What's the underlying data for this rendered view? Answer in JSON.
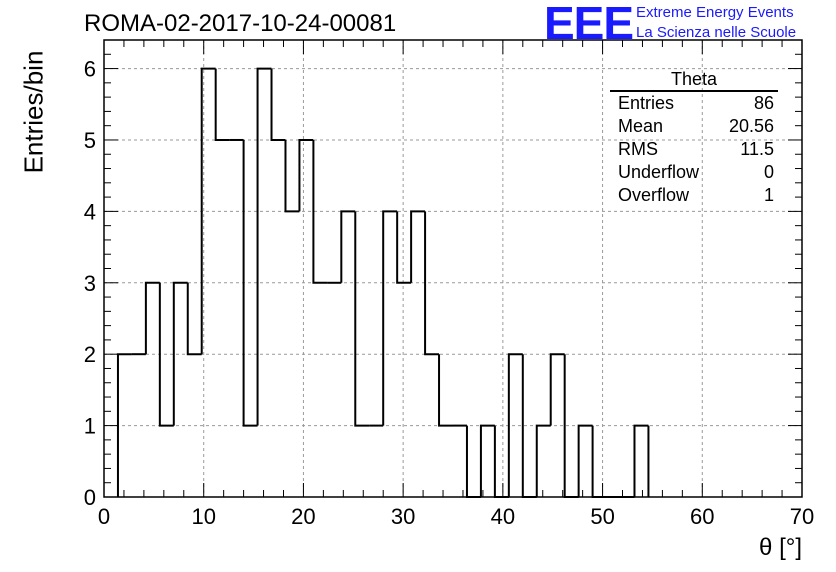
{
  "header": {
    "run_title": "ROMA-02-2017-10-24-00081",
    "logo_mark": "EEE",
    "logo_line1": "Extreme Energy Events",
    "logo_line2": "La Scienza nelle Scuole"
  },
  "stats_box": {
    "title": "Theta",
    "rows": [
      {
        "label": "Entries",
        "value": "86"
      },
      {
        "label": "Mean",
        "value": "20.56"
      },
      {
        "label": "RMS",
        "value": "11.5"
      },
      {
        "label": "Underflow",
        "value": "0"
      },
      {
        "label": "Overflow",
        "value": "1"
      }
    ]
  },
  "colors": {
    "line": "#000000",
    "grid": "#9a9a9a",
    "logo": "#1a1aff"
  },
  "chart_data": {
    "type": "bar",
    "subtype": "histogram-step",
    "title": "ROMA-02-2017-10-24-00081",
    "xlabel": "θ [°]",
    "ylabel": "Entries/bin",
    "xlim": [
      0,
      70
    ],
    "ylim": [
      0,
      6.4
    ],
    "xticks": [
      0,
      10,
      20,
      30,
      40,
      50,
      60,
      70
    ],
    "yticks": [
      0,
      1,
      2,
      3,
      4,
      5,
      6
    ],
    "grid": true,
    "bin_width": 1.4,
    "bin_edges_start": 1.4,
    "values": [
      2,
      2,
      3,
      1,
      3,
      2,
      6,
      5,
      5,
      1,
      6,
      5,
      4,
      5,
      3,
      3,
      4,
      1,
      1,
      4,
      3,
      4,
      2,
      1,
      1,
      0,
      1,
      0,
      2,
      0,
      1,
      2,
      0,
      1,
      0,
      0,
      0,
      1
    ]
  }
}
